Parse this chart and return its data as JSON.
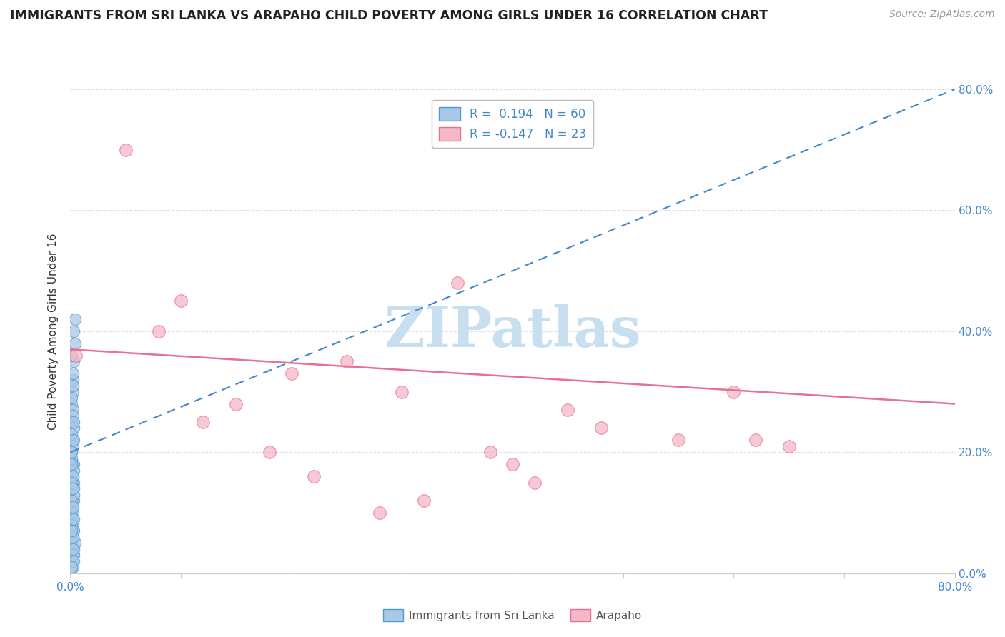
{
  "title": "IMMIGRANTS FROM SRI LANKA VS ARAPAHO CHILD POVERTY AMONG GIRLS UNDER 16 CORRELATION CHART",
  "source": "Source: ZipAtlas.com",
  "ylabel": "Child Poverty Among Girls Under 16",
  "xlim": [
    0.0,
    0.8
  ],
  "ylim": [
    0.0,
    0.8
  ],
  "xticks": [
    0.0,
    0.1,
    0.2,
    0.3,
    0.4,
    0.5,
    0.6,
    0.7,
    0.8
  ],
  "xtick_labels_show": [
    "0.0%",
    "",
    "",
    "",
    "",
    "",
    "",
    "",
    "80.0%"
  ],
  "yticks": [
    0.0,
    0.2,
    0.4,
    0.6,
    0.8
  ],
  "ytick_labels_right": [
    "0.0%",
    "20.0%",
    "40.0%",
    "60.0%",
    "80.0%"
  ],
  "blue_color": "#a8c8e8",
  "blue_edge_color": "#5599cc",
  "pink_color": "#f5b8c8",
  "pink_edge_color": "#e87090",
  "blue_line_color": "#4488cc",
  "pink_line_color": "#e87090",
  "legend_r1": "R =  0.194",
  "legend_n1": "N = 60",
  "legend_r2": "R = -0.147",
  "legend_n2": "N = 23",
  "watermark": "ZIPatlas",
  "watermark_color": "#c8dff0",
  "label1": "Immigrants from Sri Lanka",
  "label2": "Arapaho",
  "blue_scatter_x": [
    0.002,
    0.001,
    0.003,
    0.002,
    0.001,
    0.002,
    0.004,
    0.003,
    0.002,
    0.001,
    0.002,
    0.003,
    0.001,
    0.002,
    0.003,
    0.004,
    0.002,
    0.001,
    0.002,
    0.003,
    0.001,
    0.002,
    0.003,
    0.002,
    0.001,
    0.003,
    0.002,
    0.001,
    0.002,
    0.003,
    0.002,
    0.001,
    0.003,
    0.002,
    0.001,
    0.002,
    0.003,
    0.001,
    0.002,
    0.003,
    0.002,
    0.001,
    0.003,
    0.002,
    0.001,
    0.002,
    0.003,
    0.004,
    0.002,
    0.001,
    0.002,
    0.003,
    0.001,
    0.002,
    0.003,
    0.002,
    0.001,
    0.002,
    0.003,
    0.001
  ],
  "blue_scatter_y": [
    0.32,
    0.28,
    0.35,
    0.3,
    0.25,
    0.22,
    0.38,
    0.4,
    0.27,
    0.2,
    0.18,
    0.15,
    0.1,
    0.08,
    0.12,
    0.42,
    0.33,
    0.29,
    0.16,
    0.24,
    0.05,
    0.07,
    0.18,
    0.22,
    0.36,
    0.14,
    0.11,
    0.09,
    0.26,
    0.13,
    0.31,
    0.19,
    0.17,
    0.06,
    0.23,
    0.21,
    0.04,
    0.08,
    0.16,
    0.03,
    0.02,
    0.15,
    0.07,
    0.1,
    0.2,
    0.01,
    0.25,
    0.05,
    0.03,
    0.12,
    0.06,
    0.09,
    0.18,
    0.04,
    0.02,
    0.14,
    0.07,
    0.11,
    0.22,
    0.01
  ],
  "pink_scatter_x": [
    0.005,
    0.3,
    0.2,
    0.15,
    0.08,
    0.25,
    0.1,
    0.35,
    0.05,
    0.45,
    0.12,
    0.18,
    0.6,
    0.55,
    0.4,
    0.65,
    0.22,
    0.32,
    0.48,
    0.38,
    0.28,
    0.62,
    0.42
  ],
  "pink_scatter_y": [
    0.36,
    0.3,
    0.33,
    0.28,
    0.4,
    0.35,
    0.45,
    0.48,
    0.7,
    0.27,
    0.25,
    0.2,
    0.3,
    0.22,
    0.18,
    0.21,
    0.16,
    0.12,
    0.24,
    0.2,
    0.1,
    0.22,
    0.15
  ],
  "blue_trend_x": [
    0.0,
    0.8
  ],
  "blue_trend_y": [
    0.2,
    0.8
  ],
  "pink_trend_x": [
    0.0,
    0.8
  ],
  "pink_trend_y": [
    0.37,
    0.28
  ],
  "grid_color": "#dddddd",
  "spine_color": "#cccccc"
}
